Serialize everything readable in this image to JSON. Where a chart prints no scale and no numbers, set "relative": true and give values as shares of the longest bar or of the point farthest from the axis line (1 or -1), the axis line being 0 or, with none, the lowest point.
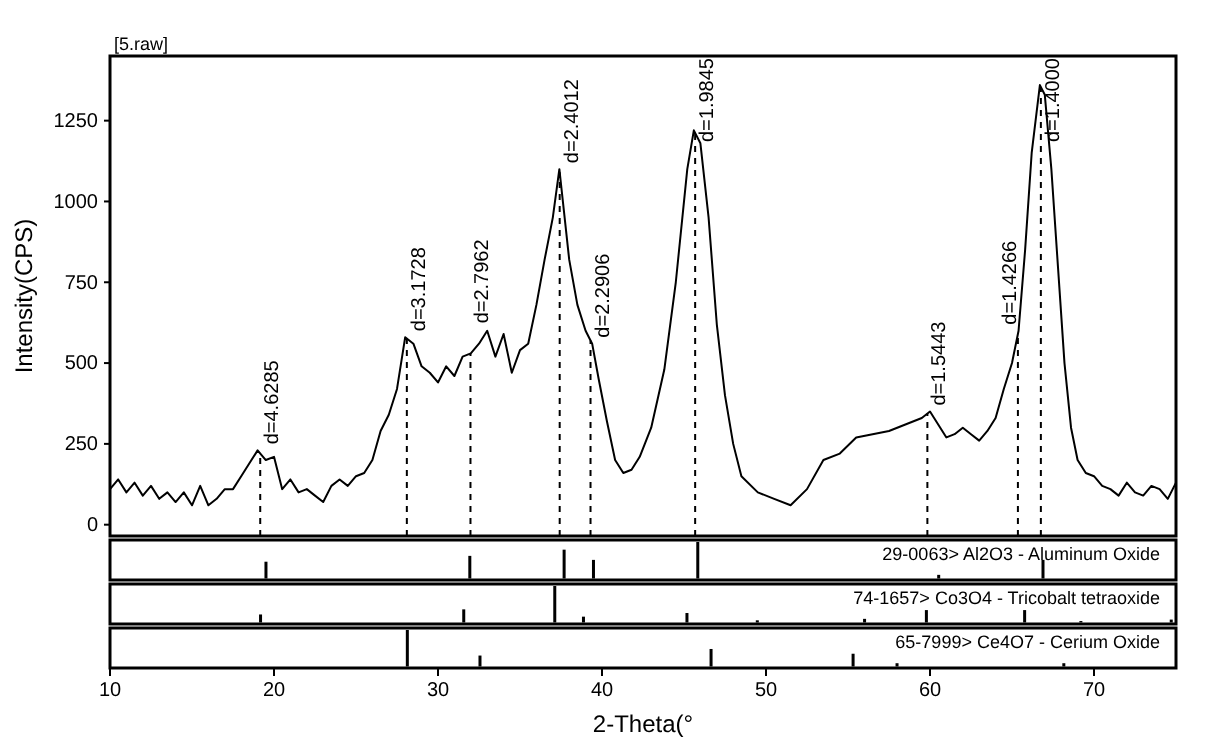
{
  "chart_data": [
    {
      "type": "line",
      "title": "[5.raw]",
      "ylabel": "Intensity(CPS)",
      "xlim": [
        10,
        75
      ],
      "ylim": [
        -35,
        1450
      ],
      "yticks": [
        0,
        250,
        500,
        750,
        1000,
        1250
      ],
      "tick_labels": "y",
      "grid": false,
      "line_style": "solid",
      "series": [
        {
          "color": "#000000",
          "x": [
            10,
            10.5,
            11,
            11.5,
            12,
            12.5,
            13,
            13.5,
            14,
            14.5,
            15,
            15.5,
            16,
            16.5,
            17,
            17.5,
            18,
            18.5,
            19,
            19.5,
            20,
            20.5,
            21,
            21.5,
            22,
            22.5,
            23,
            23.5,
            24,
            24.5,
            25,
            25.5,
            26,
            26.5,
            27,
            27.5,
            28,
            28.5,
            29,
            29.5,
            30,
            30.5,
            31,
            31.5,
            32,
            32.5,
            33,
            33.5,
            34,
            34.5,
            35,
            35.5,
            36,
            36.5,
            37,
            37.4,
            37.7,
            38,
            38.5,
            39,
            39.4,
            39.8,
            40.3,
            40.8,
            41.3,
            41.8,
            42.3,
            43,
            43.8,
            44.5,
            45.2,
            45.6,
            46,
            46.5,
            47,
            47.5,
            48,
            48.5,
            49.5,
            50.5,
            51.5,
            52.5,
            53.5,
            54.5,
            55.5,
            56.5,
            57.5,
            58.5,
            59.5,
            60,
            60.5,
            61,
            61.5,
            62,
            62.5,
            63,
            63.5,
            64,
            64.5,
            65,
            65.4,
            65.8,
            66.2,
            66.7,
            67,
            67.4,
            67.8,
            68.2,
            68.6,
            69,
            69.5,
            70,
            70.5,
            71,
            71.5,
            72,
            72.5,
            73,
            73.5,
            74,
            74.5,
            75
          ],
          "values": [
            110,
            140,
            100,
            130,
            90,
            120,
            80,
            100,
            70,
            100,
            60,
            120,
            60,
            80,
            110,
            110,
            150,
            190,
            230,
            200,
            210,
            110,
            140,
            100,
            110,
            90,
            70,
            120,
            140,
            120,
            150,
            160,
            200,
            290,
            340,
            420,
            580,
            560,
            490,
            470,
            440,
            490,
            460,
            520,
            530,
            560,
            600,
            520,
            590,
            470,
            540,
            560,
            680,
            820,
            950,
            1100,
            960,
            820,
            680,
            600,
            560,
            450,
            320,
            200,
            160,
            170,
            210,
            300,
            480,
            750,
            1100,
            1220,
            1180,
            950,
            620,
            400,
            250,
            150,
            100,
            80,
            60,
            110,
            200,
            220,
            270,
            280,
            290,
            310,
            330,
            350,
            310,
            270,
            280,
            300,
            280,
            260,
            290,
            330,
            420,
            500,
            600,
            850,
            1150,
            1360,
            1330,
            1100,
            800,
            500,
            300,
            200,
            160,
            150,
            120,
            110,
            90,
            130,
            100,
            90,
            120,
            110,
            80,
            130
          ]
        }
      ],
      "ref_lines": [
        {
          "axis": "x",
          "value": 19.16,
          "line_style": "dashed"
        },
        {
          "axis": "x",
          "value": 28.1,
          "line_style": "dashed"
        },
        {
          "axis": "x",
          "value": 31.98,
          "line_style": "dashed"
        },
        {
          "axis": "x",
          "value": 37.42,
          "line_style": "dashed"
        },
        {
          "axis": "x",
          "value": 39.3,
          "line_style": "dashed"
        },
        {
          "axis": "x",
          "value": 45.68,
          "line_style": "dashed"
        },
        {
          "axis": "x",
          "value": 59.84,
          "line_style": "dashed"
        },
        {
          "axis": "x",
          "value": 65.36,
          "line_style": "dashed"
        },
        {
          "axis": "x",
          "value": 66.76,
          "line_style": "dashed"
        }
      ],
      "annotations": [
        {
          "text": "d=4.6285",
          "x": 19.16,
          "y": 230
        },
        {
          "text": "d=3.1728",
          "x": 28.1,
          "y": 580
        },
        {
          "text": "d=2.7962",
          "x": 31.98,
          "y": 530
        },
        {
          "text": "d=2.4012",
          "x": 37.42,
          "y": 1100
        },
        {
          "text": "d=2.2906",
          "x": 39.3,
          "y": 560
        },
        {
          "text": "d=1.9845",
          "x": 45.68,
          "y": 1220
        },
        {
          "text": "d=1.5443",
          "x": 59.84,
          "y": 350
        },
        {
          "text": "d=1.4266",
          "x": 65.36,
          "y": 600
        },
        {
          "text": "d=1.4000",
          "x": 66.76,
          "y": 1360
        }
      ]
    },
    {
      "type": "bar",
      "title": "29-0063> Al2O3 - Aluminum Oxide",
      "relative": true,
      "xlim": [
        10,
        75
      ],
      "tick_labels": false,
      "series": [
        {
          "color": "#000000",
          "x": [
            19.51,
            31.94,
            37.69,
            39.48,
            45.84,
            60.53,
            66.89
          ],
          "values": [
            0.46,
            0.62,
            0.79,
            0.51,
            1,
            0.1,
            0.51
          ]
        }
      ]
    },
    {
      "type": "bar",
      "title": "74-1657> Co3O4 - Tricobalt tetraoxide",
      "relative": true,
      "xlim": [
        10,
        75
      ],
      "tick_labels": false,
      "series": [
        {
          "color": "#000000",
          "x": [
            19.18,
            31.57,
            37.12,
            38.87,
            45.18,
            49.47,
            56.01,
            59.78,
            65.77,
            69.2,
            74.71
          ],
          "values": [
            0.22,
            0.36,
            1,
            0.16,
            0.26,
            0.06,
            0.1,
            0.34,
            0.34,
            0.04,
            0.08
          ]
        }
      ]
    },
    {
      "type": "bar",
      "title": "65-7999> Ce4O7 - Cerium Oxide",
      "xlabel": "2-Theta(°",
      "relative": true,
      "xlim": [
        10,
        75
      ],
      "xticks": [
        10,
        20,
        30,
        40,
        50,
        60,
        70
      ],
      "tick_labels": "x",
      "series": [
        {
          "color": "#000000",
          "x": [
            28.13,
            32.56,
            46.65,
            55.31,
            57.99,
            68.16
          ],
          "values": [
            1,
            0.3,
            0.48,
            0.35,
            0.09,
            0.09
          ]
        }
      ]
    }
  ]
}
